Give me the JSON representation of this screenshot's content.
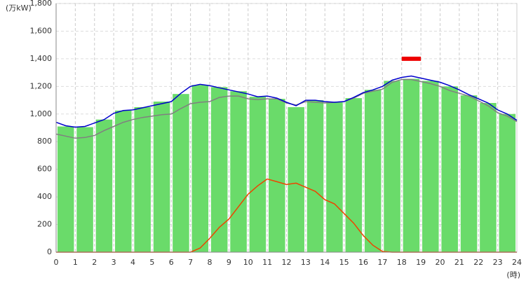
{
  "chart_data": {
    "type": "bar",
    "y_label": "(万kW)",
    "x_label": "(時)",
    "xlim": [
      0,
      24
    ],
    "xticks": [
      0,
      1,
      2,
      3,
      4,
      5,
      6,
      7,
      8,
      9,
      10,
      11,
      12,
      13,
      14,
      15,
      16,
      17,
      18,
      19,
      20,
      21,
      22,
      23,
      24
    ],
    "ylim": [
      0,
      1800
    ],
    "yticks": [
      0,
      200,
      400,
      600,
      800,
      {
        "value": 1000,
        "label": "1,000"
      },
      {
        "value": 1200,
        "label": "1,200"
      },
      {
        "value": 1400,
        "label": "1,400"
      },
      {
        "value": 1600,
        "label": "1,600"
      },
      {
        "value": 1800,
        "label": "1,800"
      }
    ],
    "grid": true,
    "bars": {
      "color": "#6adb6a",
      "x": [
        0,
        1,
        2,
        3,
        4,
        5,
        6,
        7,
        8,
        9,
        10,
        11,
        12,
        13,
        14,
        15,
        16,
        17,
        18,
        19,
        20,
        21,
        22,
        23
      ],
      "values": [
        910,
        905,
        960,
        1025,
        1050,
        1090,
        1145,
        1210,
        1195,
        1165,
        1125,
        1110,
        1050,
        1100,
        1085,
        1115,
        1175,
        1240,
        1255,
        1240,
        1200,
        1135,
        1080,
        1000
      ]
    },
    "x": [
      0,
      0.5,
      1,
      1.5,
      2,
      2.5,
      3,
      3.5,
      4,
      4.5,
      5,
      5.5,
      6,
      6.5,
      7,
      7.5,
      8,
      8.5,
      9,
      9.5,
      10,
      10.5,
      11,
      11.5,
      12,
      12.5,
      13,
      13.5,
      14,
      14.5,
      15,
      15.5,
      16,
      16.5,
      17,
      17.5,
      18,
      18.5,
      19,
      19.5,
      20,
      20.5,
      21,
      21.5,
      22,
      22.5,
      23,
      23.5,
      24
    ],
    "series": [
      {
        "color": "#808080",
        "values": [
          855,
          840,
          825,
          830,
          845,
          880,
          910,
          940,
          960,
          975,
          985,
          995,
          1000,
          1040,
          1075,
          1085,
          1090,
          1120,
          1130,
          1130,
          1110,
          1105,
          1110,
          1110,
          1080,
          1065,
          1090,
          1085,
          1080,
          1085,
          1090,
          1115,
          1150,
          1165,
          1180,
          1230,
          1250,
          1250,
          1235,
          1220,
          1200,
          1170,
          1150,
          1130,
          1095,
          1060,
          1010,
          985,
          945
        ]
      },
      {
        "color": "#0000cc",
        "values": [
          940,
          915,
          905,
          910,
          935,
          960,
          1005,
          1025,
          1030,
          1045,
          1060,
          1075,
          1090,
          1150,
          1200,
          1215,
          1205,
          1190,
          1175,
          1160,
          1145,
          1125,
          1130,
          1115,
          1085,
          1060,
          1100,
          1100,
          1090,
          1085,
          1090,
          1120,
          1155,
          1175,
          1200,
          1245,
          1265,
          1275,
          1260,
          1245,
          1230,
          1205,
          1175,
          1140,
          1110,
          1080,
          1030,
          1000,
          955
        ]
      },
      {
        "color": "#ee4400",
        "values": [
          0,
          0,
          0,
          0,
          0,
          0,
          0,
          0,
          0,
          0,
          0,
          0,
          0,
          0,
          0,
          30,
          100,
          180,
          240,
          330,
          420,
          480,
          530,
          510,
          490,
          500,
          470,
          440,
          380,
          350,
          280,
          210,
          120,
          50,
          5,
          0,
          0,
          0,
          0,
          0,
          0,
          0,
          0,
          0,
          0,
          0,
          0,
          0,
          0
        ]
      }
    ],
    "peak": {
      "value": 1400,
      "xrange": [
        18,
        19
      ],
      "color": "#ee0000"
    }
  }
}
